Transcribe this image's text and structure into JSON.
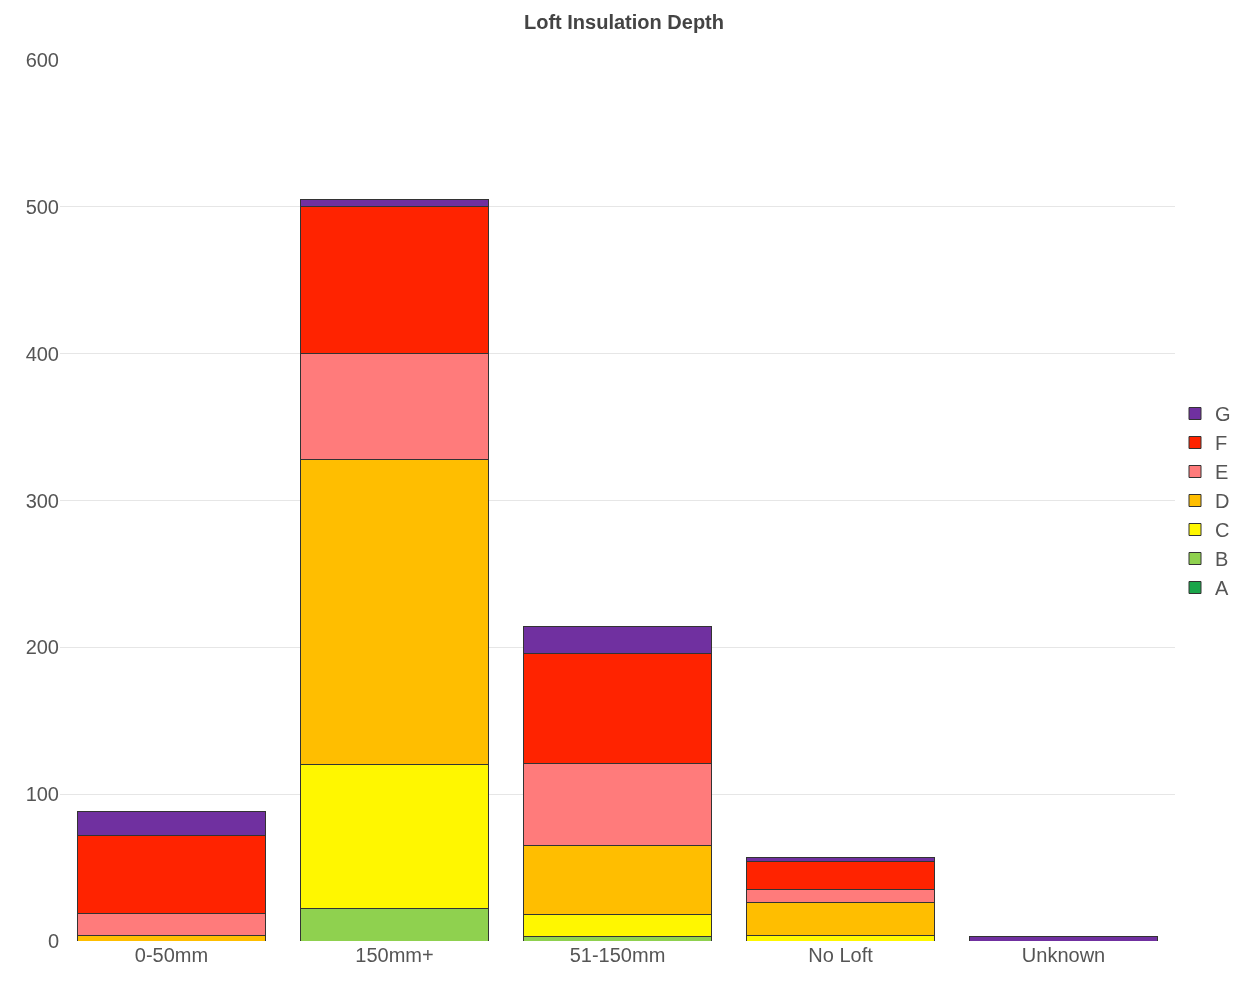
{
  "chart_data": {
    "type": "bar",
    "title": "Loft Insulation Depth",
    "stacked": true,
    "categories": [
      "0-50mm",
      "150mm+",
      "51-150mm",
      "No Loft",
      "Unknown"
    ],
    "series": [
      {
        "name": "A",
        "color": "#1aa54a",
        "values": [
          0,
          0,
          0,
          0,
          0
        ]
      },
      {
        "name": "B",
        "color": "#8fd14f",
        "values": [
          0,
          22,
          3,
          0,
          0
        ]
      },
      {
        "name": "C",
        "color": "#fff700",
        "values": [
          0,
          98,
          15,
          4,
          0
        ]
      },
      {
        "name": "D",
        "color": "#ffbe00",
        "values": [
          4,
          208,
          47,
          22,
          0
        ]
      },
      {
        "name": "E",
        "color": "#ff7b7b",
        "values": [
          15,
          72,
          56,
          9,
          0
        ]
      },
      {
        "name": "F",
        "color": "#ff2300",
        "values": [
          53,
          100,
          75,
          19,
          0
        ]
      },
      {
        "name": "G",
        "color": "#7030a0",
        "values": [
          16,
          5,
          18,
          3,
          3
        ]
      }
    ],
    "ylim": [
      0,
      600
    ],
    "yticks": [
      0,
      100,
      200,
      300,
      400,
      500,
      600
    ],
    "grid": "y",
    "legend": "right"
  }
}
